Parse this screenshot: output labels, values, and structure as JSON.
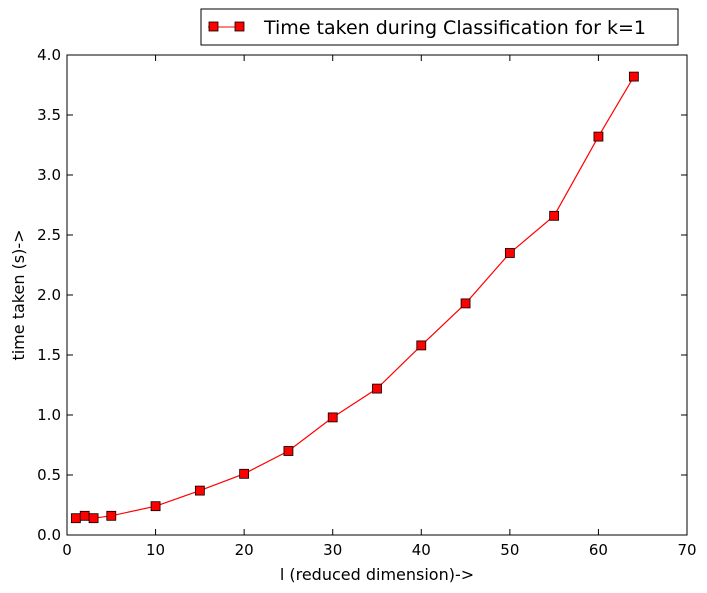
{
  "chart_data": {
    "type": "line",
    "xlabel": "l (reduced dimension)->",
    "ylabel": "time taken (s)->",
    "xlim": [
      0,
      70
    ],
    "ylim": [
      0,
      4.0
    ],
    "xticks": [
      "0",
      "10",
      "20",
      "30",
      "40",
      "50",
      "60",
      "70"
    ],
    "yticks": [
      "0.0",
      "0.5",
      "1.0",
      "1.5",
      "2.0",
      "2.5",
      "3.0",
      "3.5",
      "4.0"
    ],
    "grid": false,
    "legend_position": "top-right, outside above plot",
    "series": [
      {
        "name": "Time taken during Classification for k=1",
        "color": "#ff0000",
        "marker": "square",
        "x": [
          1,
          2,
          3,
          5,
          10,
          15,
          20,
          25,
          30,
          35,
          40,
          45,
          50,
          55,
          60,
          64
        ],
        "y": [
          0.14,
          0.16,
          0.14,
          0.16,
          0.24,
          0.37,
          0.51,
          0.7,
          0.98,
          1.22,
          1.58,
          1.93,
          2.35,
          2.66,
          3.32,
          3.82
        ]
      }
    ]
  }
}
